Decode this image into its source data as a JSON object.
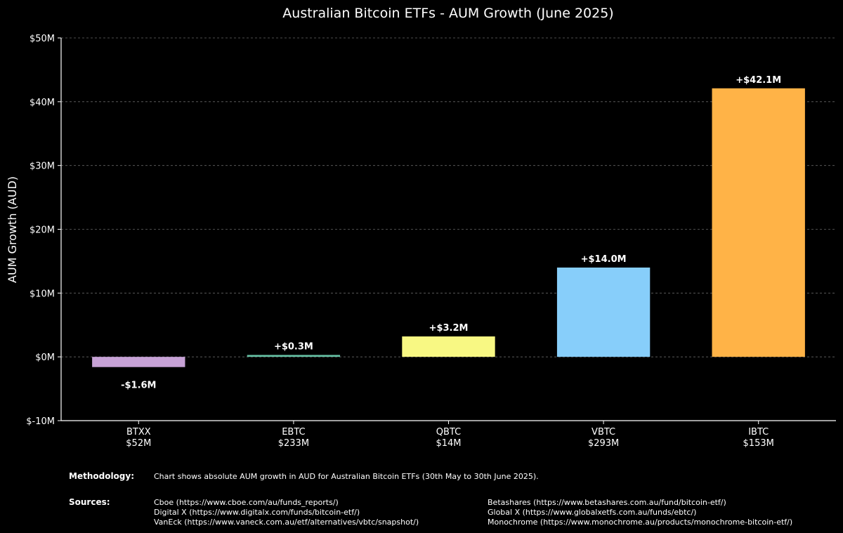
{
  "chart_data": {
    "type": "bar",
    "title": "Australian Bitcoin ETFs - AUM Growth (June 2025)",
    "xlabel": "",
    "ylabel": "AUM Growth (AUD)",
    "ylim": [
      -10,
      50
    ],
    "y_ticks": [
      -10,
      0,
      10,
      20,
      30,
      40,
      50
    ],
    "y_tick_labels": [
      "$-10M",
      "$0M",
      "$10M",
      "$20M",
      "$30M",
      "$40M",
      "$50M"
    ],
    "grid": true,
    "categories": [
      "BTXX",
      "EBTC",
      "QBTC",
      "VBTC",
      "IBTC"
    ],
    "category_aum": [
      "$52M",
      "$233M",
      "$14M",
      "$293M",
      "$153M"
    ],
    "values": [
      -1.6,
      0.3,
      3.2,
      14.0,
      42.1
    ],
    "value_labels": [
      "-$1.6M",
      "+$0.3M",
      "+$3.2M",
      "+$14.0M",
      "+$42.1M"
    ],
    "colors": [
      "#C7A2D6",
      "#66C2A5",
      "#F8F883",
      "#87CEFA",
      "#FFB347"
    ],
    "units": "Millions AUD"
  },
  "methodology": {
    "heading": "Methodology:",
    "text": "Chart shows absolute AUM growth in AUD for Australian Bitcoin ETFs (30th May to 30th June 2025)."
  },
  "sources": {
    "heading": "Sources:",
    "left": [
      "Cboe (https://www.cboe.com/au/funds_reports/)",
      "Digital X (https://www.digitalx.com/funds/bitcoin-etf/)",
      "VanEck (https://www.vaneck.com.au/etf/alternatives/vbtc/snapshot/)"
    ],
    "right": [
      "Betashares (https://www.betashares.com.au/fund/bitcoin-etf/)",
      "Global X (https://www.globalxetfs.com.au/funds/ebtc/)",
      "Monochrome (https://www.monochrome.au/products/monochrome-bitcoin-etf/)"
    ]
  },
  "colors": {
    "background": "#000000",
    "axis": "#ffffff",
    "grid": "#666666",
    "text": "#ffffff"
  }
}
